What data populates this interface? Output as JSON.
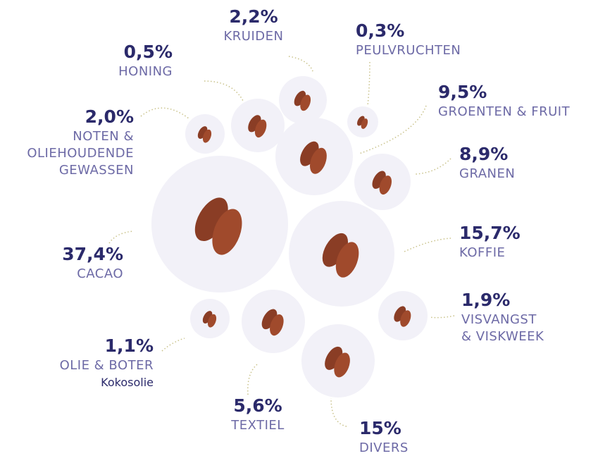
{
  "items": [
    {
      "percent": "2,2%",
      "lines": [
        "KRUIDEN"
      ]
    },
    {
      "percent": "0,3%",
      "lines": [
        "PEULVRUCHTEN"
      ]
    },
    {
      "percent": "0,5%",
      "lines": [
        "HONING"
      ]
    },
    {
      "percent": "9,5%",
      "lines": [
        "GROENTEN & FRUIT"
      ]
    },
    {
      "percent": "2,0%",
      "lines": [
        "NOTEN &",
        "OLIEHOUDENDE",
        "GEWASSEN"
      ]
    },
    {
      "percent": "8,9%",
      "lines": [
        "GRANEN"
      ]
    },
    {
      "percent": "37,4%",
      "lines": [
        "CACAO"
      ]
    },
    {
      "percent": "15,7%",
      "lines": [
        "KOFFIE"
      ]
    },
    {
      "percent": "1,9%",
      "lines": [
        "VISVANGST",
        "& VISKWEEK"
      ]
    },
    {
      "percent": "1,1%",
      "lines": [
        "OLIE & BOTER"
      ],
      "note": "Kokosolie"
    },
    {
      "percent": "5,6%",
      "lines": [
        "TEXTIEL"
      ]
    },
    {
      "percent": "15%",
      "lines": [
        "DIVERS"
      ]
    }
  ]
}
